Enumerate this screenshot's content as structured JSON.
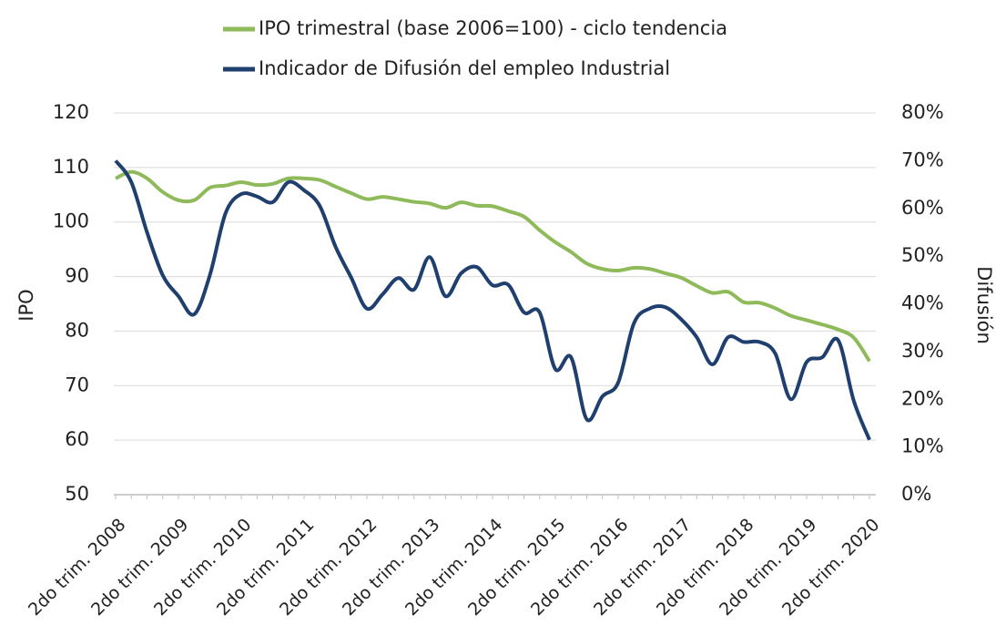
{
  "chart_data": {
    "type": "line",
    "categories": [
      "2do trim. 2008",
      null,
      null,
      null,
      "2do trim. 2009",
      null,
      null,
      null,
      "2do trim. 2010",
      null,
      null,
      null,
      "2do trim. 2011",
      null,
      null,
      null,
      "2do trim. 2012",
      null,
      null,
      null,
      "2do trim. 2013",
      null,
      null,
      null,
      "2do trim. 2014",
      null,
      null,
      null,
      "2do trim. 2015",
      null,
      null,
      null,
      "2do trim. 2016",
      null,
      null,
      null,
      "2do trim. 2017",
      null,
      null,
      null,
      "2do trim. 2018",
      null,
      null,
      null,
      "2do trim. 2019",
      null,
      null,
      null,
      "2do trim. 2020"
    ],
    "series": [
      {
        "name": "IPO trimestral (base 2006=100) - ciclo tendencia",
        "color": "#8fba5a",
        "axis": "y",
        "values": [
          108,
          109.2,
          108,
          105.5,
          104,
          104,
          106.3,
          106.7,
          107.3,
          106.8,
          107,
          108,
          108,
          107.7,
          106.5,
          105.3,
          104.2,
          104.6,
          104.2,
          103.7,
          103.4,
          102.6,
          103.6,
          103,
          102.9,
          102,
          101,
          98.5,
          96.3,
          94.5,
          92.4,
          91.4,
          91.1,
          91.6,
          91.4,
          90.6,
          89.8,
          88.3,
          87,
          87.2,
          85.3,
          85.2,
          84.2,
          82.8,
          82,
          81.2,
          80.3,
          78.8,
          74.5
        ]
      },
      {
        "name": "Indicador de Difusión del empleo Industrial",
        "color": "#1f3f6e",
        "axis": "y2",
        "values": [
          70,
          65.5,
          55,
          46,
          41.6,
          37.8,
          46,
          59,
          63,
          62.5,
          61.3,
          65.5,
          63.8,
          60.5,
          52,
          45.5,
          39,
          42,
          45.4,
          43,
          49.8,
          41.6,
          46.4,
          47.7,
          43.9,
          44,
          38.2,
          38.2,
          26.3,
          28.8,
          15.8,
          20.6,
          23.5,
          35.9,
          39,
          39.3,
          36.8,
          33,
          27.3,
          33,
          32,
          32,
          29.6,
          20,
          27.8,
          28.8,
          32.4,
          19.7,
          11.5
        ]
      }
    ],
    "y_label": "IPO",
    "y2_label": "Difusión",
    "ylim": [
      50,
      120
    ],
    "yticks": [
      50,
      60,
      70,
      80,
      90,
      100,
      110,
      120
    ],
    "y2lim": [
      0,
      80
    ],
    "y2ticks": [
      {
        "value": 0,
        "label": "0%"
      },
      {
        "value": 10,
        "label": "10%"
      },
      {
        "value": 20,
        "label": "20%"
      },
      {
        "value": 30,
        "label": "30%"
      },
      {
        "value": 40,
        "label": "40%"
      },
      {
        "value": 50,
        "label": "50%"
      },
      {
        "value": 60,
        "label": "60%"
      },
      {
        "value": 70,
        "label": "70%"
      },
      {
        "value": 80,
        "label": "80%"
      }
    ],
    "grid": true,
    "legend": "top"
  }
}
